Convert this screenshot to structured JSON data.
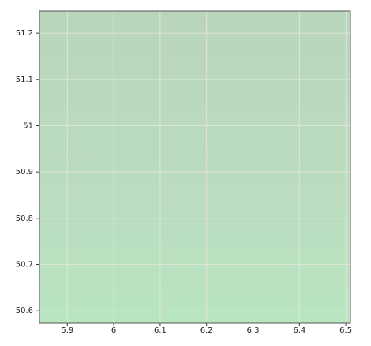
{
  "chart_data": {
    "type": "map",
    "xlim": [
      5.84,
      6.51
    ],
    "ylim": [
      50.573,
      51.248
    ],
    "xticks": [
      5.9,
      6,
      6.1,
      6.2,
      6.3,
      6.4,
      6.5
    ],
    "yticks": [
      50.6,
      50.7,
      50.8,
      50.9,
      51,
      51.1,
      51.2
    ],
    "grid": true
  }
}
